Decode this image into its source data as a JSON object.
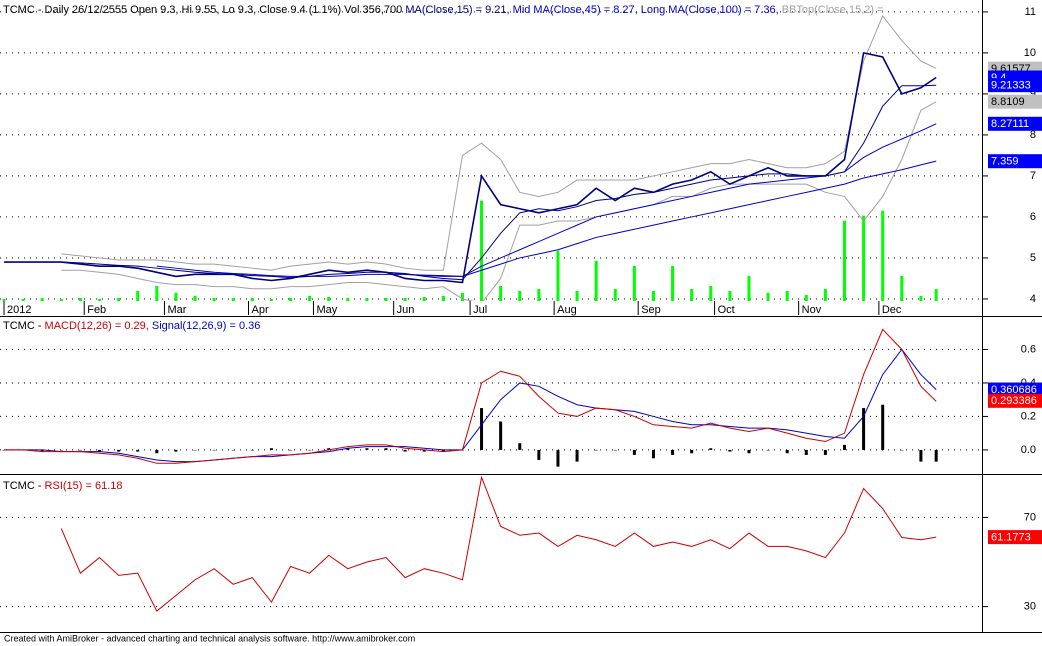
{
  "chart_data": [
    {
      "type": "line",
      "header": [
        {
          "text": "TCMC - Daily 26/12/2555 Open 9.3, Hi 9.55, Lo 9.3, Close 9.4 (1.1%) Vol 356,700 ",
          "color": "#000000"
        },
        {
          "text": "MA(Close,15) = 9.21, ",
          "color": "#000080"
        },
        {
          "text": "Mid MA(Close,45) = 8.27, ",
          "color": "#0000cc"
        },
        {
          "text": "Long MA(Close,100) = 7.36, ",
          "color": "#0000cc"
        },
        {
          "text": "BBTop(Close,15,2) =",
          "color": "#a0a0a0"
        }
      ],
      "xlim": [
        0,
        245
      ],
      "xticks": [
        {
          "value": 0,
          "label": "2012"
        },
        {
          "value": 21,
          "label": "Feb"
        },
        {
          "value": 42,
          "label": "Mar"
        },
        {
          "value": 64,
          "label": "Apr"
        },
        {
          "value": 81,
          "label": "May"
        },
        {
          "value": 102,
          "label": "Jun"
        },
        {
          "value": 122,
          "label": "Jul"
        },
        {
          "value": 144,
          "label": "Aug"
        },
        {
          "value": 166,
          "label": "Sep"
        },
        {
          "value": 186,
          "label": "Oct"
        },
        {
          "value": 208,
          "label": "Nov"
        },
        {
          "value": 229,
          "label": "Dec"
        }
      ],
      "x": [
        0,
        5,
        10,
        15,
        20,
        25,
        30,
        35,
        40,
        45,
        50,
        55,
        60,
        65,
        70,
        75,
        80,
        85,
        90,
        95,
        100,
        105,
        110,
        115,
        120,
        125,
        130,
        135,
        140,
        145,
        150,
        155,
        160,
        165,
        170,
        175,
        180,
        185,
        190,
        195,
        200,
        205,
        210,
        215,
        220,
        225,
        230,
        235,
        240,
        244
      ],
      "ylim": [
        3.95,
        11.29
      ],
      "yticks": [
        4,
        5,
        6,
        7,
        8,
        9,
        10,
        11
      ],
      "grid": true,
      "series": [
        {
          "type": "bar",
          "color": "#00ff00",
          "ylim": [
            0,
            9000000
          ],
          "values": [
            60000,
            60000,
            90000,
            60000,
            90000,
            60000,
            90000,
            300000,
            450000,
            240000,
            150000,
            90000,
            90000,
            90000,
            60000,
            90000,
            150000,
            120000,
            90000,
            90000,
            90000,
            90000,
            120000,
            150000,
            240000,
            3000000,
            450000,
            300000,
            360000,
            1500000,
            300000,
            1200000,
            360000,
            1050000,
            300000,
            1050000,
            360000,
            450000,
            300000,
            750000,
            240000,
            300000,
            180000,
            360000,
            2400000,
            2550000,
            2700000,
            750000,
            150000,
            356700
          ]
        },
        {
          "color": "#a0a0a0",
          "values": [
            null,
            null,
            null,
            5.1,
            5.05,
            5.0,
            4.95,
            4.95,
            4.95,
            4.9,
            4.85,
            4.85,
            4.8,
            4.75,
            4.7,
            4.8,
            4.85,
            4.9,
            4.85,
            4.9,
            4.85,
            4.75,
            4.7,
            4.7,
            7.5,
            7.8,
            7.4,
            6.6,
            6.5,
            6.6,
            6.9,
            6.9,
            6.9,
            6.9,
            7.0,
            7.1,
            7.2,
            7.3,
            7.3,
            7.4,
            7.3,
            7.2,
            7.2,
            7.3,
            7.6,
            9.8,
            10.9,
            10.3,
            9.8,
            9.62
          ]
        },
        {
          "color": "#a0a0a0",
          "values": [
            null,
            null,
            null,
            4.7,
            4.7,
            4.65,
            4.6,
            4.5,
            4.4,
            4.35,
            4.35,
            4.3,
            4.3,
            4.25,
            4.25,
            4.3,
            4.3,
            4.35,
            4.4,
            4.4,
            4.35,
            4.3,
            4.25,
            4.3,
            4.0,
            3.9,
            4.5,
            5.8,
            5.8,
            5.9,
            5.9,
            6.0,
            6.1,
            6.2,
            6.3,
            6.5,
            6.5,
            6.7,
            6.8,
            6.8,
            6.8,
            6.8,
            6.8,
            6.6,
            6.5,
            5.9,
            6.5,
            7.4,
            8.6,
            8.81
          ]
        },
        {
          "color": "#0000cc",
          "values": [
            null,
            null,
            null,
            null,
            null,
            null,
            null,
            null,
            null,
            null,
            null,
            null,
            null,
            null,
            null,
            null,
            null,
            null,
            null,
            null,
            4.65,
            4.6,
            4.58,
            4.57,
            4.55,
            4.7,
            4.85,
            5.0,
            5.1,
            5.2,
            5.35,
            5.5,
            5.6,
            5.7,
            5.8,
            5.9,
            6.0,
            6.1,
            6.2,
            6.3,
            6.4,
            6.5,
            6.6,
            6.7,
            6.8,
            6.95,
            7.05,
            7.15,
            7.27,
            7.36
          ]
        },
        {
          "color": "#0000cc",
          "values": [
            null,
            null,
            null,
            null,
            null,
            null,
            null,
            null,
            4.8,
            4.75,
            4.7,
            4.65,
            4.62,
            4.6,
            4.57,
            4.55,
            4.55,
            4.55,
            4.57,
            4.6,
            4.6,
            4.6,
            4.57,
            4.55,
            4.55,
            4.8,
            5.0,
            5.2,
            5.4,
            5.6,
            5.8,
            6.0,
            6.1,
            6.2,
            6.3,
            6.4,
            6.5,
            6.6,
            6.7,
            6.8,
            6.85,
            6.9,
            6.95,
            7.0,
            7.1,
            7.45,
            7.7,
            7.9,
            8.1,
            8.27
          ]
        },
        {
          "color": "#000080",
          "values": [
            null,
            null,
            null,
            4.9,
            4.88,
            4.85,
            4.82,
            4.8,
            4.75,
            4.7,
            4.65,
            4.62,
            4.6,
            4.57,
            4.55,
            4.52,
            4.55,
            4.6,
            4.62,
            4.65,
            4.65,
            4.62,
            4.55,
            4.5,
            4.47,
            5.0,
            5.6,
            6.1,
            6.2,
            6.15,
            6.25,
            6.4,
            6.45,
            6.55,
            6.6,
            6.7,
            6.8,
            6.9,
            6.95,
            7.0,
            7.05,
            7.05,
            7.0,
            7.0,
            7.1,
            7.8,
            8.7,
            9.2,
            9.2,
            9.21
          ]
        },
        {
          "color": "#000080",
          "width": 1.6,
          "values": [
            4.9,
            4.9,
            4.9,
            4.9,
            4.85,
            4.8,
            4.8,
            4.75,
            4.65,
            4.55,
            4.6,
            4.6,
            4.6,
            4.5,
            4.45,
            4.5,
            4.6,
            4.7,
            4.65,
            4.7,
            4.65,
            4.5,
            4.45,
            4.45,
            4.4,
            7.0,
            6.3,
            6.2,
            6.1,
            6.2,
            6.3,
            6.7,
            6.4,
            6.7,
            6.6,
            6.8,
            6.9,
            7.1,
            6.8,
            7.0,
            7.2,
            7.0,
            7.0,
            7.0,
            7.4,
            10.0,
            9.9,
            9.0,
            9.15,
            9.4
          ]
        }
      ],
      "markers": [
        {
          "value": 9.61577,
          "color": "#c0c0c0",
          "text_color": "#000000"
        },
        {
          "value": 9.4,
          "color": "#0000ff",
          "text_color": "#ffffff"
        },
        {
          "value": 9.21333,
          "color": "#0000ff",
          "text_color": "#ffffff"
        },
        {
          "value": 8.8109,
          "color": "#c0c0c0",
          "text_color": "#000000"
        },
        {
          "value": 8.27111,
          "color": "#0000ff",
          "text_color": "#ffffff"
        },
        {
          "value": 7.359,
          "color": "#0000ff",
          "text_color": "#ffffff"
        }
      ]
    },
    {
      "type": "line",
      "header": [
        {
          "text": "TCMC - ",
          "color": "#000000"
        },
        {
          "text": "MACD(12,26) = 0.29, ",
          "color": "#cc0000"
        },
        {
          "text": "Signal(12,26,9) = 0.36",
          "color": "#0000cc"
        }
      ],
      "xlim": [
        0,
        245
      ],
      "x": [
        0,
        5,
        10,
        15,
        20,
        25,
        30,
        35,
        40,
        45,
        50,
        55,
        60,
        65,
        70,
        75,
        80,
        85,
        90,
        95,
        100,
        105,
        110,
        115,
        120,
        125,
        130,
        135,
        140,
        145,
        150,
        155,
        160,
        165,
        170,
        175,
        180,
        185,
        190,
        195,
        200,
        205,
        210,
        215,
        220,
        225,
        230,
        235,
        240,
        244
      ],
      "ylim": [
        -0.12,
        0.8
      ],
      "yticks": [
        {
          "value": 0,
          "label": "0.0"
        },
        0.2,
        0.4,
        0.6
      ],
      "grid": true,
      "series": [
        {
          "type": "bar",
          "color": "#000000",
          "values": [
            0,
            0,
            -0.01,
            0,
            0,
            -0.01,
            -0.01,
            -0.01,
            -0.02,
            -0.01,
            0,
            0,
            0,
            0,
            0.01,
            0,
            0,
            0.01,
            0.01,
            0.01,
            0.01,
            -0.01,
            -0.01,
            -0.01,
            0,
            0.25,
            0.17,
            0.04,
            -0.06,
            -0.1,
            -0.07,
            0,
            0,
            -0.03,
            -0.05,
            -0.03,
            -0.02,
            0.01,
            -0.01,
            -0.02,
            0,
            -0.02,
            -0.03,
            -0.03,
            0.03,
            0.25,
            0.27,
            0,
            -0.07,
            -0.07
          ]
        },
        {
          "color": "#0000cc",
          "values": [
            0,
            0,
            0,
            -0.01,
            -0.01,
            -0.01,
            -0.02,
            -0.04,
            -0.06,
            -0.07,
            -0.07,
            -0.06,
            -0.05,
            -0.04,
            -0.04,
            -0.03,
            -0.02,
            -0.01,
            0.01,
            0.02,
            0.02,
            0.02,
            0.01,
            0.0,
            0.0,
            0.15,
            0.3,
            0.4,
            0.38,
            0.32,
            0.27,
            0.25,
            0.24,
            0.23,
            0.2,
            0.17,
            0.15,
            0.15,
            0.14,
            0.13,
            0.13,
            0.12,
            0.1,
            0.08,
            0.07,
            0.2,
            0.45,
            0.6,
            0.45,
            0.36
          ]
        },
        {
          "color": "#cc0000",
          "values": [
            0,
            0,
            -0.01,
            -0.01,
            -0.01,
            -0.02,
            -0.03,
            -0.05,
            -0.08,
            -0.08,
            -0.07,
            -0.06,
            -0.05,
            -0.04,
            -0.03,
            -0.03,
            -0.02,
            0.0,
            0.02,
            0.03,
            0.03,
            0.01,
            0.0,
            -0.01,
            0.0,
            0.4,
            0.47,
            0.44,
            0.32,
            0.22,
            0.2,
            0.25,
            0.24,
            0.2,
            0.15,
            0.14,
            0.13,
            0.16,
            0.13,
            0.11,
            0.13,
            0.1,
            0.07,
            0.05,
            0.1,
            0.45,
            0.72,
            0.6,
            0.38,
            0.29
          ]
        }
      ],
      "markers": [
        {
          "value": 0.360686,
          "color": "#0000ff",
          "text_color": "#ffffff"
        },
        {
          "value": 0.293386,
          "color": "#ff0000",
          "text_color": "#ffffff"
        }
      ]
    },
    {
      "type": "line",
      "header": [
        {
          "text": "TCMC - ",
          "color": "#000000"
        },
        {
          "text": "RSI(15) = 61.18",
          "color": "#cc0000"
        }
      ],
      "xlim": [
        0,
        245
      ],
      "x": [
        0,
        5,
        10,
        15,
        20,
        25,
        30,
        35,
        40,
        45,
        50,
        55,
        60,
        65,
        70,
        75,
        80,
        85,
        90,
        95,
        100,
        105,
        110,
        115,
        120,
        125,
        130,
        135,
        140,
        145,
        150,
        155,
        160,
        165,
        170,
        175,
        180,
        185,
        190,
        195,
        200,
        205,
        210,
        215,
        220,
        225,
        230,
        235,
        240,
        244
      ],
      "ylim": [
        18.6,
        88.6
      ],
      "yticks": [
        30,
        70
      ],
      "grid": true,
      "series": [
        {
          "color": "#cc0000",
          "values": [
            null,
            null,
            null,
            65,
            45,
            52,
            44,
            45,
            28,
            35,
            42,
            47,
            40,
            43,
            32,
            48,
            45,
            53,
            47,
            50,
            52,
            43,
            47,
            45,
            42,
            88,
            66,
            62,
            63,
            57,
            62,
            60,
            57,
            63,
            57,
            59,
            57,
            60,
            56,
            63,
            57,
            57,
            55,
            52,
            63,
            83,
            74,
            61,
            60,
            61.18
          ]
        }
      ],
      "markers": [
        {
          "value": 61.1773,
          "color": "#ff0000",
          "text_color": "#ffffff"
        }
      ]
    }
  ],
  "footer": "Created with AmiBroker - advanced charting and technical analysis software. http://www.amibroker.com"
}
